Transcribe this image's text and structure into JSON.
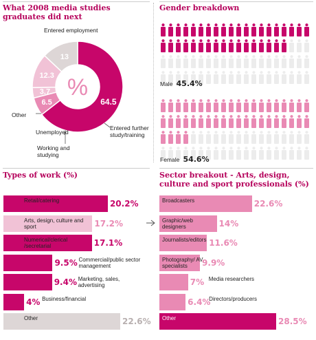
{
  "colors": {
    "accent": "#c7066a",
    "accent_light": "#e98ab4",
    "accent_pale": "#f1c2d6",
    "grey": "#ddd6d6",
    "grey_text": "#b8b0b0",
    "title": "#b5005b"
  },
  "chart_data": [
    {
      "type": "pie",
      "title": "What 2008 media studies graduates did next",
      "categories": [
        "Entered employment",
        "Entered further study/training",
        "Working and studying",
        "Unemployed",
        "Other"
      ],
      "values": [
        64.5,
        6.5,
        3.7,
        12.3,
        13
      ],
      "value_labels": [
        "64.5",
        "6.5",
        "3.7",
        "12.3",
        "13"
      ],
      "center_symbol": "%"
    },
    {
      "type": "pictogram",
      "title": "Gender breakdown",
      "categories": [
        "Male",
        "Female"
      ],
      "values": [
        45.4,
        54.6
      ],
      "value_labels": [
        "45.4%",
        "54.6%"
      ]
    },
    {
      "type": "bar",
      "title": "Types of work (%)",
      "categories": [
        "Retail/catering",
        "Arts, design, culture and sport",
        "Numerical/clerical /secretarial",
        "Commercial/public sector management",
        "Marketing, sales, advertising",
        "Business/financial",
        "Other"
      ],
      "values": [
        20.2,
        17.2,
        17.1,
        9.5,
        9.4,
        4,
        22.6
      ],
      "value_labels": [
        "20.2%",
        "17.2%",
        "17.1%",
        "9.5%",
        "9.4%",
        "4%",
        "22.6%"
      ]
    },
    {
      "type": "bar",
      "title": "Sector breakout - Arts, design, culture and sport professionals (%)",
      "categories": [
        "Broadcasters",
        "Graphic/web designers",
        "Journalists/editors",
        "Photography/ AV specialists",
        "Media researchers",
        "Directors/producers",
        "Other"
      ],
      "values": [
        22.6,
        14,
        11.6,
        9.9,
        7,
        6.4,
        28.5
      ],
      "value_labels": [
        "22.6%",
        "14%",
        "11.6%",
        "9.9%",
        "7%",
        "6.4%",
        "28.5%"
      ]
    }
  ],
  "icons": {
    "person": "person-icon",
    "arrow": "arrow-right-icon"
  }
}
